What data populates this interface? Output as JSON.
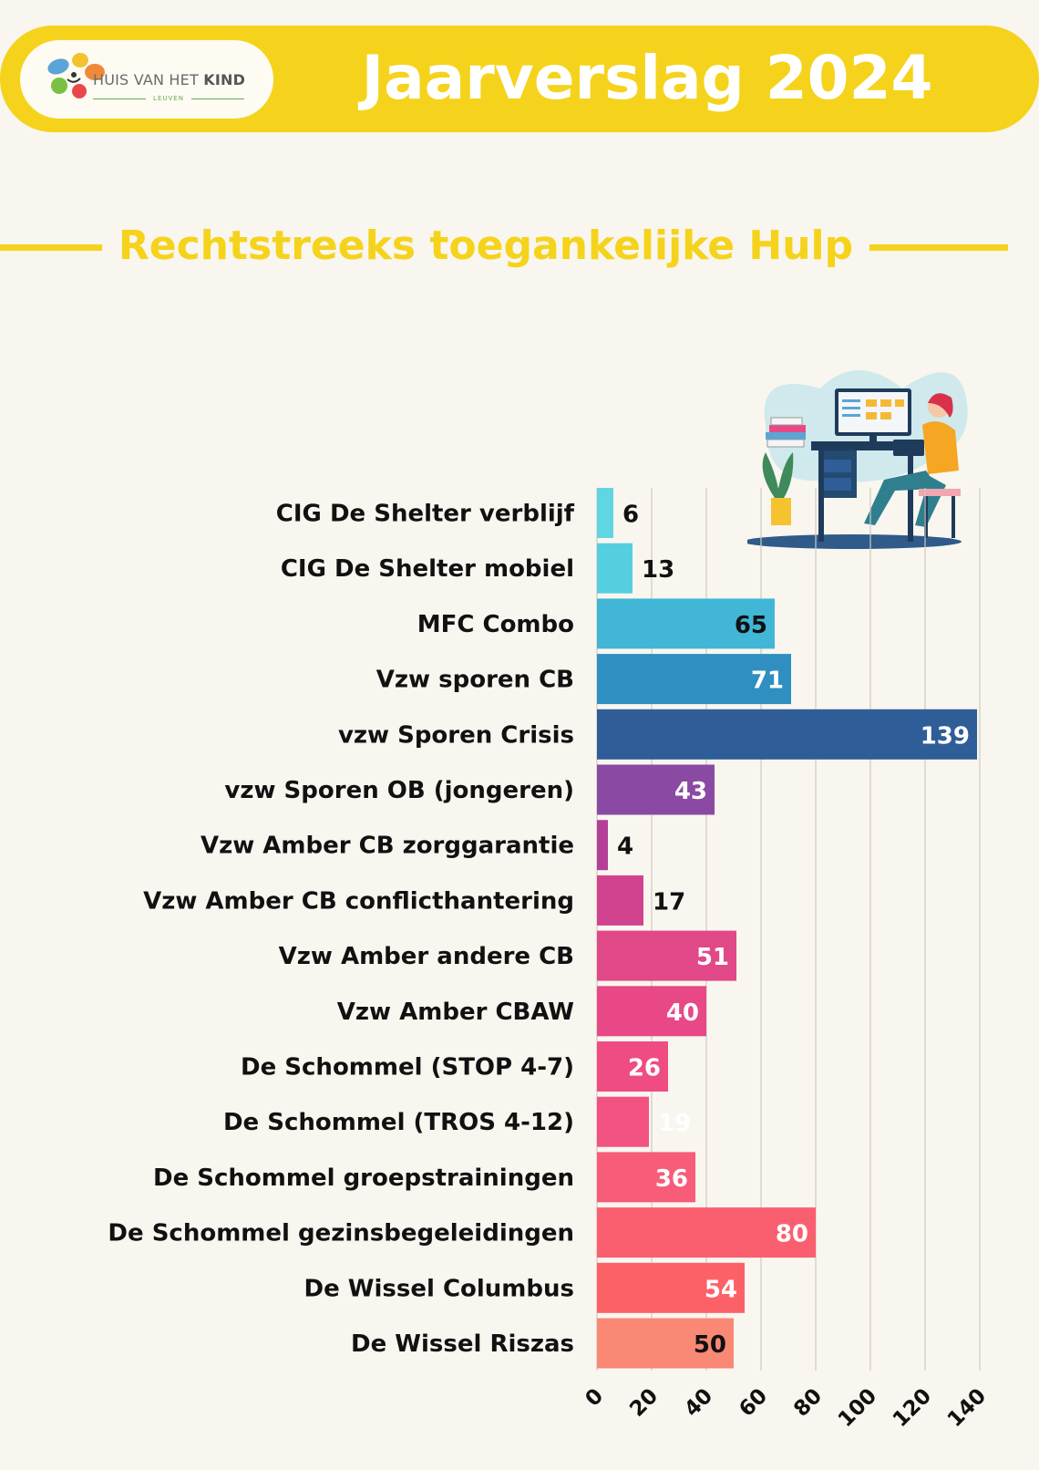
{
  "header": {
    "logo_name": "HUIS VAN HET",
    "logo_name_bold": "KIND",
    "logo_sub": "LEUVEN",
    "title": "Jaarverslag 2024"
  },
  "section_title": "Rechtstreeks  toegankelijke Hulp",
  "chart_data": {
    "type": "bar",
    "orientation": "horizontal",
    "categories": [
      "CIG De Shelter verblijf",
      "CIG De Shelter mobiel",
      "MFC Combo",
      "Vzw sporen CB",
      "vzw Sporen Crisis",
      "vzw Sporen OB (jongeren)",
      "Vzw Amber CB zorggarantie",
      "Vzw Amber CB conflicthantering",
      "Vzw Amber andere CB",
      "Vzw Amber CBAW",
      "De Schommel (STOP 4-7)",
      "De Schommel (TROS 4-12)",
      "De Schommel groepstrainingen",
      "De Schommel gezinsbegeleidingen",
      "De Wissel Columbus",
      "De Wissel Riszas"
    ],
    "values": [
      6,
      13,
      65,
      71,
      139,
      43,
      4,
      17,
      51,
      40,
      26,
      19,
      36,
      80,
      54,
      50
    ],
    "colors": [
      "#5fd6e2",
      "#55cfdf",
      "#41b6d6",
      "#2f8fc0",
      "#2f5d97",
      "#8a4aa3",
      "#b43f99",
      "#d1438e",
      "#e04888",
      "#e84886",
      "#ef4c84",
      "#f25282",
      "#f75c78",
      "#fa5f70",
      "#fc6168",
      "#f98875"
    ],
    "value_label_colors": [
      "#111111",
      "#111111",
      "#111111",
      "#ffffff",
      "#ffffff",
      "#ffffff",
      "#111111",
      "#111111",
      "#ffffff",
      "#ffffff",
      "#ffffff",
      "#ffffff",
      "#ffffff",
      "#ffffff",
      "#ffffff",
      "#111111"
    ],
    "xlim": [
      0,
      140
    ],
    "xticks": [
      0,
      20,
      40,
      60,
      80,
      100,
      120,
      140
    ],
    "grid": true,
    "title": "Rechtstreeks  toegankelijke Hulp",
    "xlabel": "",
    "ylabel": ""
  }
}
